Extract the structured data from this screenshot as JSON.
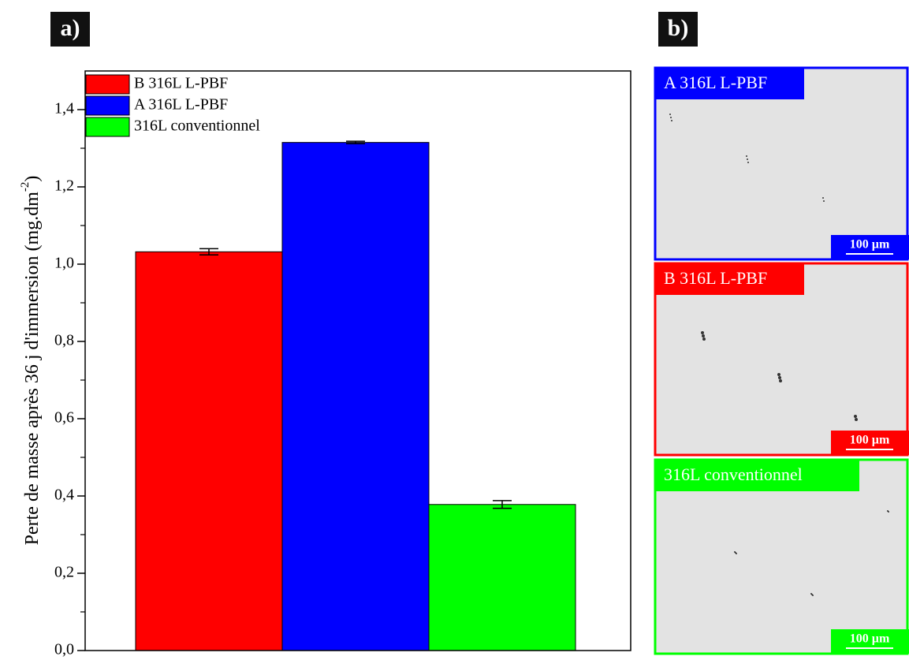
{
  "panel_labels": [
    "a)",
    "b)"
  ],
  "chart_data": {
    "type": "bar",
    "y_label": "Perte de masse après 36 j d'immersion (mg.dm",
    "y_label_sup": "-2",
    "y_label_end": ")",
    "series": [
      {
        "name": "B 316L L-PBF",
        "color": "#ff0000",
        "values": [
          1.032
        ],
        "errors": [
          0.008
        ]
      },
      {
        "name": "A 316L L-PBF",
        "color": "#0000ff",
        "values": [
          1.315
        ],
        "errors": [
          0.003
        ]
      },
      {
        "name": "316L conventionnel",
        "color": "#00ff00",
        "values": [
          0.378
        ],
        "errors": [
          0.01
        ]
      }
    ],
    "ylim": [
      0,
      1.5
    ],
    "yticks": [
      {
        "value": 0,
        "label": "0,0"
      },
      {
        "value": 0.2,
        "label": "0,2"
      },
      {
        "value": 0.4,
        "label": "0,4"
      },
      {
        "value": 0.6,
        "label": "0,6"
      },
      {
        "value": 0.8,
        "label": "0,8"
      },
      {
        "value": 1.0,
        "label": "1,0"
      },
      {
        "value": 1.2,
        "label": "1,2"
      },
      {
        "value": 1.4,
        "label": "1,4"
      }
    ],
    "legend": "upper left"
  },
  "micrographs": [
    {
      "label": "A 316L L-PBF",
      "color": "#0000ff",
      "scale": "100 µm"
    },
    {
      "label": "B 316L L-PBF",
      "color": "#ff0000",
      "scale": "100 µm"
    },
    {
      "label": "316L conventionnel",
      "color": "#00ff00",
      "scale": "100 µm"
    }
  ]
}
